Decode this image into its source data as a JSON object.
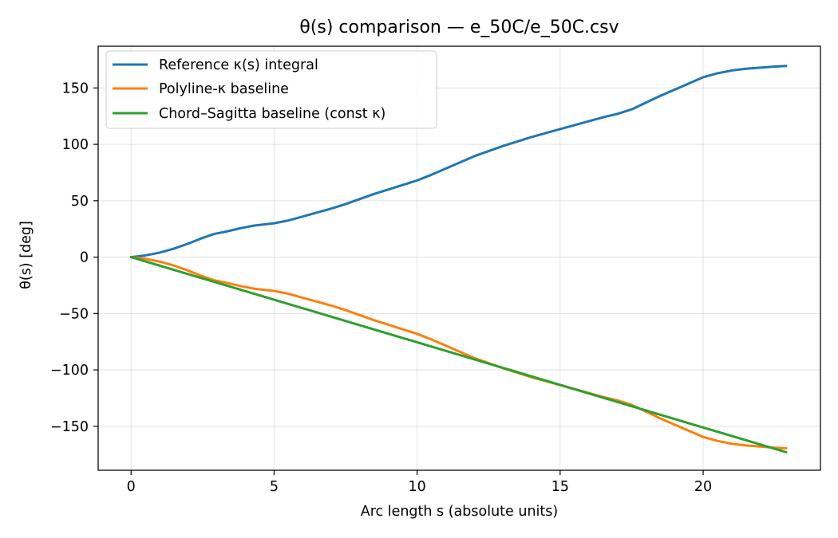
{
  "chart_data": {
    "type": "line",
    "title": "θ(s) comparison — e_50C/e_50C.csv",
    "xlabel": "Arc length s (absolute units)",
    "ylabel": "θ(s) [deg]",
    "xlim": [
      -1.15,
      24.1
    ],
    "ylim": [
      -189,
      187
    ],
    "xticks": [
      0,
      5,
      10,
      15,
      20
    ],
    "xtick_labels": [
      "0",
      "5",
      "10",
      "15",
      "20"
    ],
    "yticks": [
      -150,
      -100,
      -50,
      0,
      50,
      100,
      150
    ],
    "ytick_labels": [
      "−150",
      "−100",
      "−50",
      "0",
      "50",
      "100",
      "150"
    ],
    "grid": true,
    "legend_position": "upper-left",
    "series": [
      {
        "name": "Reference κ(s) integral",
        "color": "#1f77b4",
        "x": [
          0,
          0.5,
          1,
          1.5,
          2,
          2.5,
          2.9,
          3.3,
          3.8,
          4.3,
          5,
          5.5,
          6,
          6.5,
          7,
          7.5,
          8,
          8.5,
          9,
          9.5,
          10,
          10.5,
          11,
          11.5,
          12,
          12.5,
          13,
          13.5,
          14,
          14.5,
          15,
          15.5,
          16,
          16.5,
          17,
          17.5,
          18,
          18.5,
          19,
          19.5,
          20,
          20.5,
          21,
          21.5,
          22,
          22.5,
          22.9
        ],
        "y": [
          0,
          1.5,
          4,
          7.5,
          12,
          17,
          20.5,
          22.5,
          25.5,
          28,
          30,
          32.5,
          36,
          39.5,
          43,
          47,
          51.5,
          56,
          60,
          64,
          68,
          73,
          78.5,
          84,
          89.5,
          94,
          98.5,
          102.5,
          106.5,
          110,
          113.5,
          117,
          120.5,
          124,
          127,
          131,
          137,
          143,
          148.5,
          154,
          159.5,
          163,
          165.5,
          167,
          168,
          169,
          169.5
        ]
      },
      {
        "name": "Polyline-κ baseline",
        "color": "#ff7f0e",
        "x": [
          0,
          0.5,
          1,
          1.5,
          2,
          2.5,
          2.9,
          3.3,
          3.8,
          4.3,
          5,
          5.5,
          6,
          6.5,
          7,
          7.5,
          8,
          8.5,
          9,
          9.5,
          10,
          10.5,
          11,
          11.5,
          12,
          12.5,
          13,
          13.5,
          14,
          14.5,
          15,
          15.5,
          16,
          16.5,
          17,
          17.5,
          18,
          18.5,
          19,
          19.5,
          20,
          20.5,
          21,
          21.5,
          22,
          22.5,
          22.9
        ],
        "y": [
          0,
          -1.5,
          -4,
          -7.5,
          -12,
          -17,
          -20.5,
          -22.5,
          -25.5,
          -28,
          -30,
          -32.5,
          -36,
          -39.5,
          -43,
          -47,
          -51.5,
          -56,
          -60,
          -64,
          -68,
          -73,
          -78.5,
          -84,
          -89.5,
          -94,
          -98.5,
          -102.5,
          -106.5,
          -110,
          -113.5,
          -117,
          -120.5,
          -124,
          -127,
          -131,
          -137,
          -143,
          -148.5,
          -154,
          -159.5,
          -163,
          -165.5,
          -167,
          -168,
          -169,
          -169.5
        ]
      },
      {
        "name": "Chord–Sagitta baseline (const κ)",
        "color": "#2ca02c",
        "x": [
          0,
          22.9
        ],
        "y": [
          0,
          -173
        ]
      }
    ]
  }
}
